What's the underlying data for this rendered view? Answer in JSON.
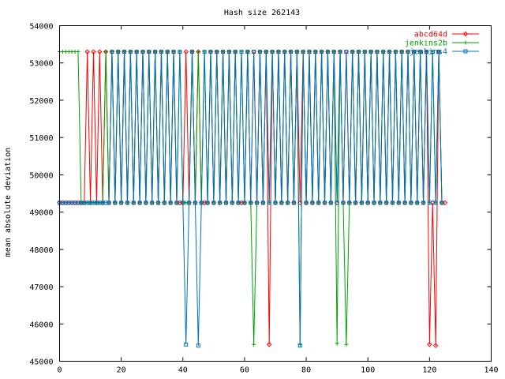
{
  "chart_data": {
    "type": "line",
    "title": "Hash size 262143",
    "xlabel": "",
    "ylabel": "mean absolute deviation",
    "xlim": [
      0,
      140
    ],
    "ylim": [
      45000,
      54000
    ],
    "x_ticks": [
      0,
      20,
      40,
      60,
      80,
      100,
      120,
      140
    ],
    "y_ticks": [
      45000,
      46000,
      47000,
      48000,
      49000,
      50000,
      51000,
      52000,
      53000,
      54000
    ],
    "grid": false,
    "legend_position": "top-right",
    "series": [
      {
        "name": "abcd64d",
        "color": "#ff0000",
        "marker": "diamond",
        "x": [
          0,
          1,
          2,
          3,
          4,
          5,
          6,
          7,
          8,
          9,
          10,
          11,
          12,
          13,
          14,
          15,
          16,
          17,
          18,
          19,
          20,
          21,
          22,
          23,
          24,
          25,
          26,
          27,
          28,
          29,
          30,
          31,
          32,
          33,
          34,
          35,
          36,
          37,
          38,
          39,
          40,
          41,
          42,
          43,
          44,
          45,
          46,
          47,
          48,
          49,
          50,
          51,
          52,
          53,
          54,
          55,
          56,
          57,
          58,
          59,
          60,
          61,
          62,
          63,
          64,
          65,
          66,
          67,
          68,
          69,
          70,
          71,
          72,
          73,
          74,
          75,
          76,
          77,
          78,
          79,
          80,
          81,
          82,
          83,
          84,
          85,
          86,
          87,
          88,
          89,
          90,
          91,
          92,
          93,
          94,
          95,
          96,
          97,
          98,
          99,
          100,
          101,
          102,
          103,
          104,
          105,
          106,
          107,
          108,
          109,
          110,
          111,
          112,
          113,
          114,
          115,
          116,
          117,
          118,
          119,
          120,
          121,
          122,
          123,
          124,
          125
        ],
        "y": [
          49250,
          49250,
          49250,
          49250,
          49250,
          49250,
          49250,
          49250,
          49250,
          53300,
          49250,
          53300,
          49250,
          53300,
          49250,
          53300,
          49250,
          53300,
          49250,
          53300,
          49250,
          53300,
          49250,
          53300,
          49250,
          53300,
          49250,
          53300,
          49250,
          53300,
          49250,
          53300,
          49250,
          53300,
          49250,
          53300,
          49250,
          53300,
          49250,
          49250,
          49250,
          53300,
          49250,
          53300,
          49250,
          53300,
          49250,
          49250,
          49250,
          53300,
          49250,
          53300,
          49250,
          53300,
          49250,
          53300,
          49250,
          53300,
          49250,
          49250,
          49250,
          53300,
          49250,
          53300,
          49250,
          53300,
          49250,
          53300,
          45450,
          53300,
          49250,
          53300,
          49250,
          53300,
          49250,
          53300,
          49250,
          53300,
          49250,
          53300,
          49250,
          53300,
          49250,
          53300,
          49250,
          53300,
          49250,
          53300,
          49250,
          53300,
          49250,
          53300,
          49250,
          53300,
          49250,
          53300,
          49250,
          53300,
          49250,
          53300,
          49250,
          53300,
          49250,
          53300,
          49250,
          53300,
          49250,
          53300,
          49250,
          53300,
          49250,
          53300,
          49250,
          53300,
          49250,
          53300,
          49250,
          53300,
          49250,
          53300,
          45450,
          49250,
          45420,
          53300,
          49250,
          49250
        ]
      },
      {
        "name": "jenkins2b",
        "color": "#00a000",
        "marker": "plus",
        "x": [
          0,
          1,
          2,
          3,
          4,
          5,
          6,
          7,
          8,
          9,
          10,
          11,
          12,
          13,
          14,
          15,
          16,
          17,
          18,
          19,
          20,
          21,
          22,
          23,
          24,
          25,
          26,
          27,
          28,
          29,
          30,
          31,
          32,
          33,
          34,
          35,
          36,
          37,
          38,
          39,
          40,
          41,
          42,
          43,
          44,
          45,
          46,
          47,
          48,
          49,
          50,
          51,
          52,
          53,
          54,
          55,
          56,
          57,
          58,
          59,
          60,
          61,
          62,
          63,
          64,
          65,
          66,
          67,
          68,
          69,
          70,
          71,
          72,
          73,
          74,
          75,
          76,
          77,
          78,
          79,
          80,
          81,
          82,
          83,
          84,
          85,
          86,
          87,
          88,
          89,
          90,
          91,
          92,
          93,
          94,
          95,
          96,
          97,
          98,
          99,
          100,
          101,
          102,
          103,
          104,
          105,
          106,
          107,
          108,
          109,
          110,
          111,
          112,
          113,
          114,
          115,
          116,
          117,
          118,
          119,
          120,
          121,
          122,
          123,
          124
        ],
        "y": [
          53300,
          53300,
          53300,
          53300,
          53300,
          53300,
          53300,
          49250,
          49250,
          49250,
          49250,
          49250,
          49250,
          49250,
          49250,
          53300,
          49250,
          53300,
          49250,
          53300,
          49250,
          53300,
          49250,
          53300,
          49250,
          53300,
          49250,
          53300,
          49250,
          53300,
          49250,
          53300,
          49250,
          53300,
          49250,
          53300,
          49250,
          53300,
          49250,
          53300,
          49250,
          49250,
          49250,
          53300,
          49250,
          53300,
          49250,
          53300,
          49250,
          53300,
          49250,
          53300,
          49250,
          53300,
          49250,
          53300,
          49250,
          53300,
          49250,
          53300,
          49250,
          53300,
          49250,
          45450,
          49250,
          53300,
          49250,
          53300,
          49250,
          53300,
          49250,
          53300,
          49250,
          53300,
          49250,
          53300,
          49250,
          53300,
          45450,
          53300,
          49250,
          53300,
          49250,
          53300,
          49250,
          53300,
          49250,
          53300,
          49250,
          53300,
          45480,
          53300,
          49250,
          45450,
          49250,
          53300,
          49250,
          53300,
          49250,
          53300,
          49250,
          53300,
          49250,
          53300,
          49250,
          53300,
          49250,
          53300,
          49250,
          53300,
          49250,
          53300,
          49250,
          53300,
          49250,
          53300,
          49250,
          53300,
          49250,
          53300,
          49250,
          53300,
          49250,
          53300,
          49250
        ]
      },
      {
        "name": "jenkins4",
        "color": "#0070c0",
        "marker": "square",
        "x": [
          0,
          1,
          2,
          3,
          4,
          5,
          6,
          7,
          8,
          9,
          10,
          11,
          12,
          13,
          14,
          15,
          16,
          17,
          18,
          19,
          20,
          21,
          22,
          23,
          24,
          25,
          26,
          27,
          28,
          29,
          30,
          31,
          32,
          33,
          34,
          35,
          36,
          37,
          38,
          39,
          40,
          41,
          42,
          43,
          44,
          45,
          46,
          47,
          48,
          49,
          50,
          51,
          52,
          53,
          54,
          55,
          56,
          57,
          58,
          59,
          60,
          61,
          62,
          63,
          64,
          65,
          66,
          67,
          68,
          69,
          70,
          71,
          72,
          73,
          74,
          75,
          76,
          77,
          78,
          79,
          80,
          81,
          82,
          83,
          84,
          85,
          86,
          87,
          88,
          89,
          90,
          91,
          92,
          93,
          94,
          95,
          96,
          97,
          98,
          99,
          100,
          101,
          102,
          103,
          104,
          105,
          106,
          107,
          108,
          109,
          110,
          111,
          112,
          113,
          114,
          115,
          116,
          117,
          118,
          119,
          120,
          121,
          122,
          123,
          124
        ],
        "y": [
          49250,
          49250,
          49250,
          49250,
          49250,
          49250,
          49250,
          49250,
          49250,
          49250,
          49250,
          49250,
          49250,
          49250,
          49250,
          49250,
          49250,
          53300,
          49250,
          53300,
          49250,
          53300,
          49250,
          53300,
          49250,
          53300,
          49250,
          53300,
          49250,
          53300,
          49250,
          53300,
          49250,
          53300,
          49250,
          53300,
          49250,
          53300,
          49250,
          53300,
          49250,
          45450,
          49250,
          53300,
          49250,
          45420,
          49250,
          53300,
          49250,
          53300,
          49250,
          53300,
          49250,
          53300,
          49250,
          53300,
          49250,
          53300,
          49250,
          53300,
          49250,
          53300,
          49250,
          53300,
          49250,
          53300,
          49250,
          53300,
          49250,
          53300,
          49250,
          53300,
          49250,
          53300,
          49250,
          53300,
          49250,
          53300,
          45420,
          53300,
          49250,
          53300,
          49250,
          53300,
          49250,
          53300,
          49250,
          53300,
          49250,
          53300,
          49250,
          53300,
          49250,
          53300,
          49250,
          53300,
          49250,
          53300,
          49250,
          53300,
          49250,
          53300,
          49250,
          53300,
          49250,
          53300,
          49250,
          53300,
          49250,
          53300,
          49250,
          53300,
          49250,
          53300,
          49250,
          53300,
          49250,
          53300,
          49250,
          53300,
          49250,
          53300,
          49250,
          53300,
          49250
        ]
      }
    ]
  }
}
